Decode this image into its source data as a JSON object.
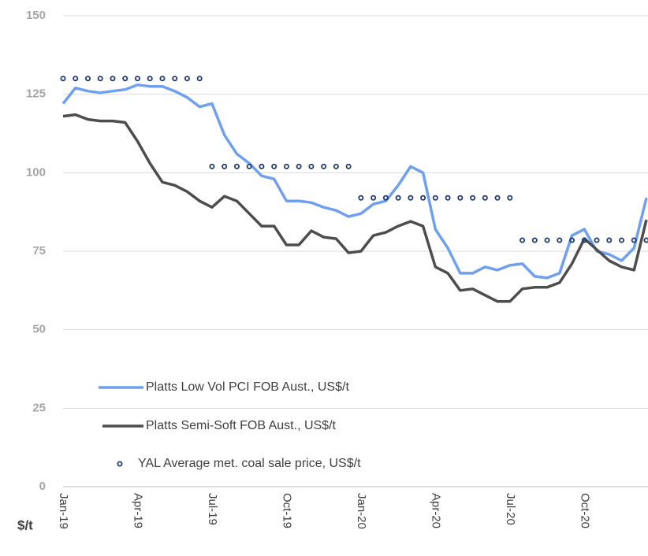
{
  "chart_data": {
    "type": "line",
    "y_label": "$/t",
    "categories": [
      "Jan-19",
      null,
      null,
      null,
      null,
      null,
      "Apr-19",
      null,
      null,
      null,
      null,
      null,
      "Jul-19",
      null,
      null,
      null,
      null,
      null,
      "Oct-19",
      null,
      null,
      null,
      null,
      null,
      "Jan-20",
      null,
      null,
      null,
      null,
      null,
      "Apr-20",
      null,
      null,
      null,
      null,
      null,
      "Jul-20",
      null,
      null,
      null,
      null,
      null,
      "Oct-20",
      null,
      null,
      null,
      null,
      null
    ],
    "series": [
      {
        "name": "Platts Low Vol PCI FOB Aust., US$/t",
        "color": "#6fa0f0",
        "style": "line",
        "values": [
          122,
          127,
          126,
          125.5,
          126,
          126.5,
          128,
          127.5,
          127.5,
          126,
          124,
          121,
          122,
          112,
          106,
          103,
          99,
          98,
          91,
          91,
          90.5,
          89,
          88,
          86,
          87,
          90,
          91,
          96,
          102,
          100,
          82,
          76,
          68,
          68,
          70,
          69,
          70.5,
          71,
          67,
          66.5,
          68,
          80,
          82,
          75,
          74,
          72,
          76,
          92
        ]
      },
      {
        "name": "Platts Semi-Soft FOB Aust., US$/t",
        "color": "#4d4d4d",
        "style": "line",
        "values": [
          118,
          118.5,
          117,
          116.5,
          116.5,
          116,
          110,
          103,
          97,
          96,
          94,
          91,
          89,
          92.5,
          91,
          87,
          83,
          83,
          77,
          77,
          81.5,
          79.5,
          79,
          74.5,
          75,
          80,
          81,
          83,
          84.5,
          83,
          70,
          68,
          62.5,
          63,
          61,
          59,
          59,
          63,
          63.5,
          63.5,
          65,
          71,
          79,
          75.5,
          72,
          70,
          69,
          85
        ]
      },
      {
        "name": "YAL Average met. coal sale price, US$/t",
        "color": "#1f3b73",
        "style": "dots",
        "values": [
          130,
          130,
          130,
          130,
          130,
          130,
          130,
          130,
          130,
          130,
          130,
          130,
          102,
          102,
          102,
          102,
          102,
          102,
          102,
          102,
          102,
          102,
          102,
          102,
          92,
          92,
          92,
          92,
          92,
          92,
          92,
          92,
          92,
          92,
          92,
          92,
          92,
          78.5,
          78.5,
          78.5,
          78.5,
          78.5,
          78.5,
          78.5,
          78.5,
          78.5,
          78.5,
          78.5
        ]
      }
    ],
    "ylim": [
      0,
      150
    ],
    "yticks": [
      0,
      25,
      50,
      75,
      100,
      125,
      150
    ],
    "grid": true
  }
}
